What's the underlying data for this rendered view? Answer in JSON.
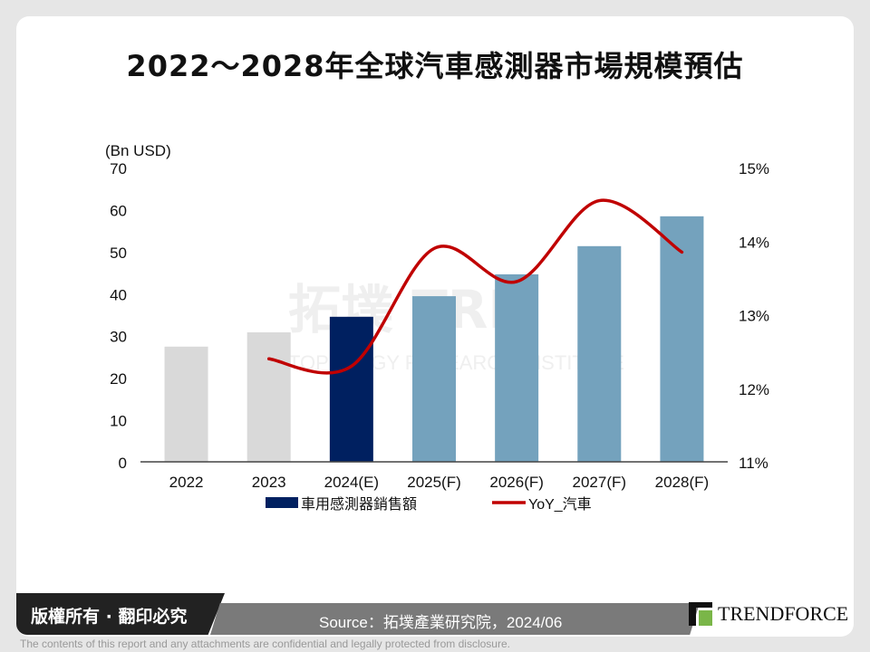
{
  "title": "2022～2028年全球汽車感測器市場規模預估",
  "footer": {
    "copyright": "版權所有 · 翻印必究",
    "source": "Source：拓墣產業研究院，2024/06",
    "brand": "TRENDFORCE",
    "disclaimer": "The contents of this report and any attachments are confidential and legally protected from disclosure.",
    "watermark": "拓墣 TRI TOPOLOGY RESEARCH INSTITUTE"
  },
  "chart_data": {
    "type": "bar+line",
    "categories": [
      "2022",
      "2023",
      "2024(E)",
      "2025(F)",
      "2026(F)",
      "2027(F)",
      "2028(F)"
    ],
    "left_axis": {
      "label": "(Bn USD)",
      "range": [
        0,
        70
      ],
      "ticks": [
        "0",
        "10",
        "20",
        "30",
        "40",
        "50",
        "60",
        "70"
      ]
    },
    "right_axis": {
      "range": [
        11,
        15
      ],
      "ticks": [
        "11%",
        "12%",
        "13%",
        "14%",
        "15%"
      ]
    },
    "series": [
      {
        "name": "車用感測器銷售額",
        "type": "bar",
        "values": [
          27.4,
          30.8,
          34.5,
          39.4,
          44.6,
          51.3,
          58.4
        ],
        "bar_colors": [
          "#d9d9d9",
          "#d9d9d9",
          "#002060",
          "#74a2bd",
          "#74a2bd",
          "#74a2bd",
          "#74a2bd"
        ]
      },
      {
        "name": "YoY_汽車",
        "type": "line",
        "axis": "right",
        "values": [
          null,
          12.4,
          12.3,
          13.9,
          13.45,
          14.55,
          13.85
        ],
        "color": "#c00000"
      }
    ],
    "legend": "bottom",
    "grid": false
  }
}
